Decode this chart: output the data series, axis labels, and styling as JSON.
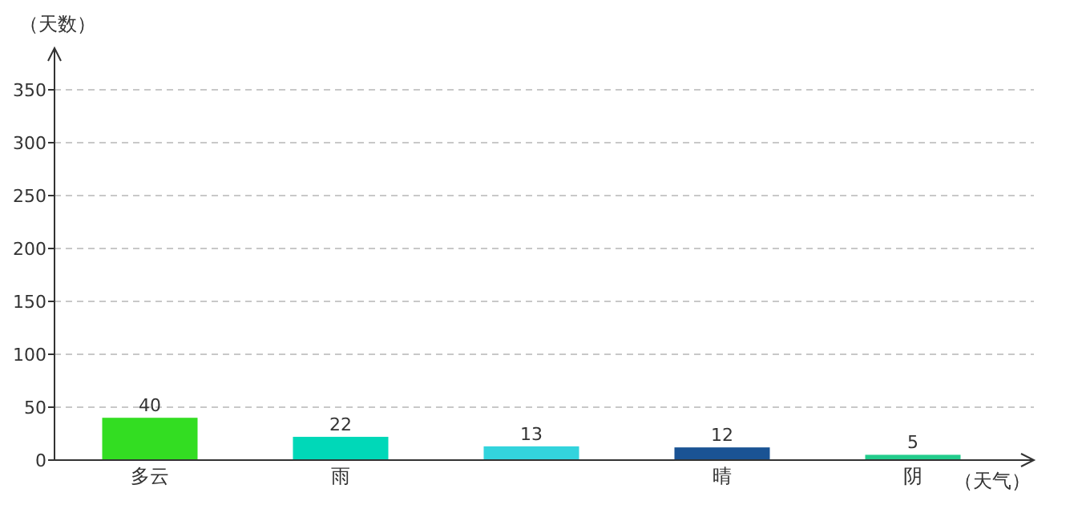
{
  "chart_data": {
    "type": "bar",
    "ylabel": "（天数）",
    "xlabel": "（天气）",
    "categories": [
      "多云",
      "雨",
      null,
      "晴",
      "阴"
    ],
    "values": [
      40,
      22,
      13,
      12,
      5
    ],
    "colors": [
      "#33dd22",
      "#00d8b8",
      "#33d4dd",
      "#1a5394",
      "#22cc8c"
    ],
    "ylim": [
      0,
      350
    ],
    "yticks": [
      0,
      50,
      100,
      150,
      200,
      250,
      300,
      350
    ],
    "grid": "y",
    "data_labels": true
  }
}
